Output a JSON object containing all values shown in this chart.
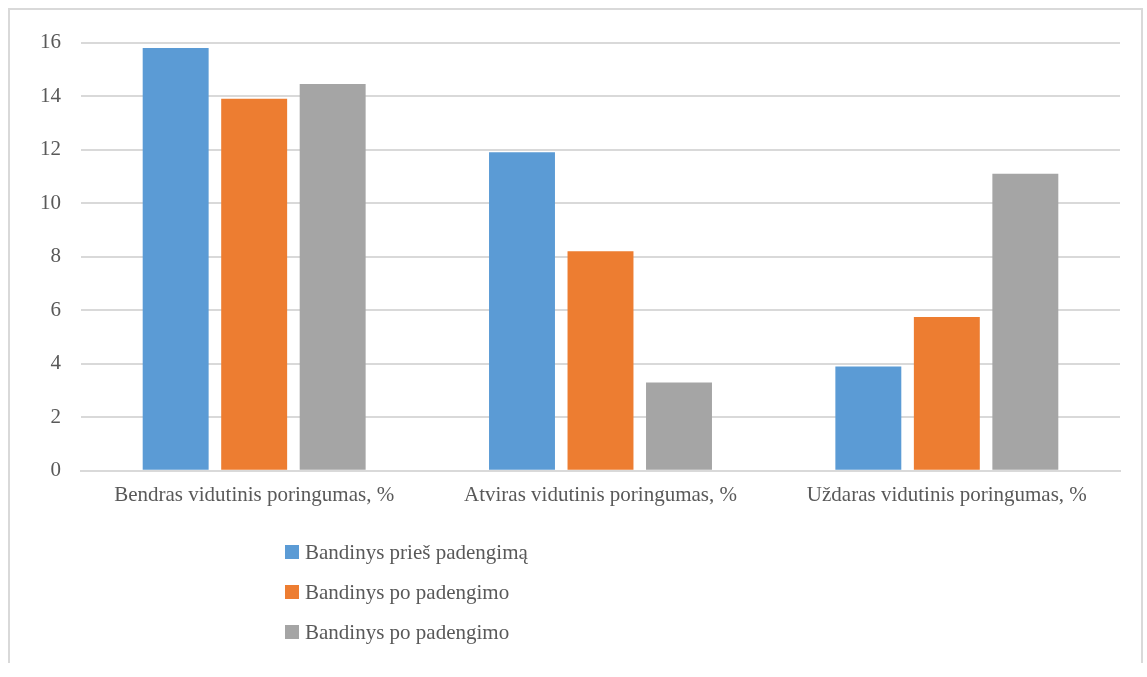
{
  "chart_data": {
    "type": "bar",
    "categories": [
      "Bendras vidutinis poringumas, %",
      "Atviras vidutinis poringumas, %",
      "Uždaras vidutinis poringumas, %"
    ],
    "series": [
      {
        "name": "Bandinys prieš padengimą",
        "color": "#5b9bd5",
        "values": [
          15.8,
          11.9,
          3.9
        ]
      },
      {
        "name": "Bandinys po padengimo",
        "color": "#ed7d31",
        "values": [
          13.9,
          8.2,
          5.75
        ]
      },
      {
        "name": "Bandinys po padengimo",
        "color": "#a5a5a5",
        "values": [
          14.45,
          3.3,
          11.1
        ]
      }
    ],
    "ylim": [
      0,
      16
    ],
    "yticks": [
      0,
      2,
      4,
      6,
      8,
      10,
      12,
      14,
      16
    ],
    "grid": "y",
    "legend": "bottom"
  }
}
